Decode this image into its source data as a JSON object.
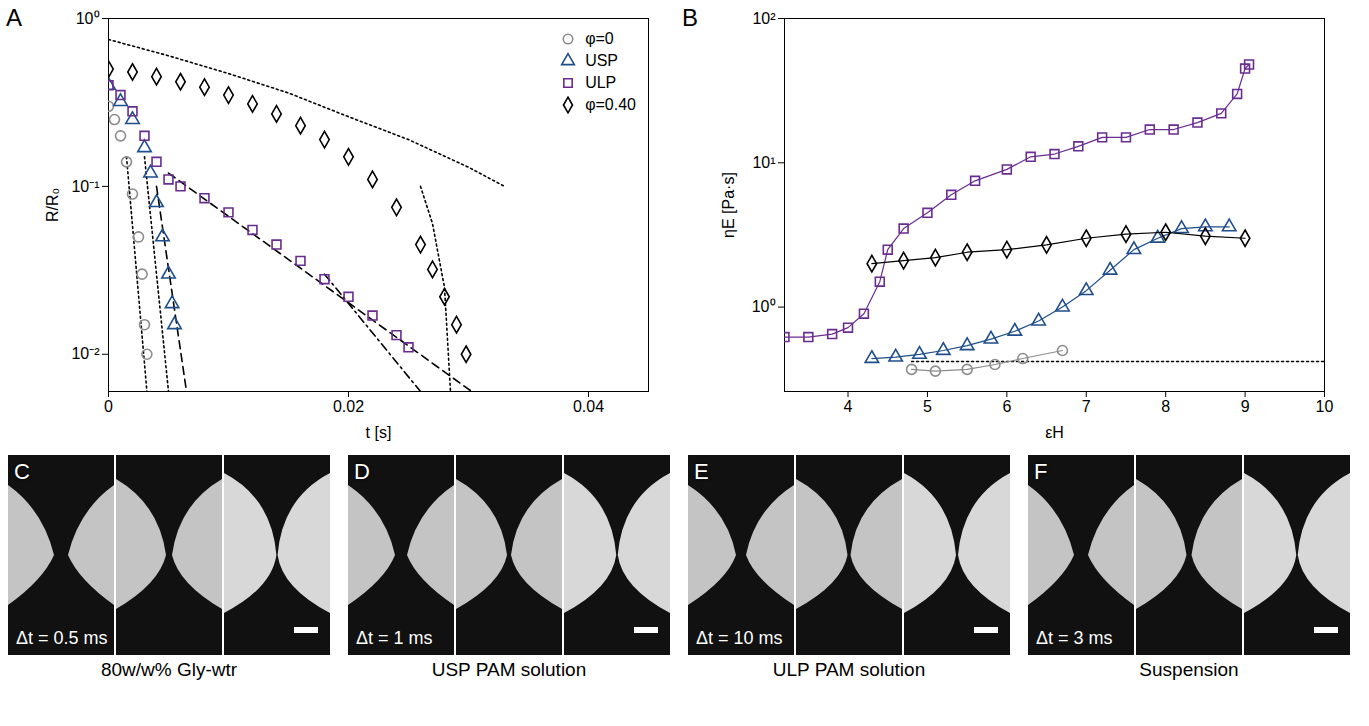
{
  "chart_data": [
    {
      "label": "A",
      "type": "scatter",
      "x_label": "t [s]",
      "y_label": "R/R₀",
      "log": "y",
      "xlim": [
        0,
        0.045
      ],
      "xticks": [
        0,
        0.02,
        0.04
      ],
      "ylim": [
        0.006,
        1
      ],
      "yticks": [
        {
          "value": 0.01,
          "label": "10⁻²"
        },
        {
          "value": 0.1,
          "label": "10⁻¹"
        },
        {
          "value": 1,
          "label": "10⁰"
        }
      ],
      "legend": "upper right",
      "series": [
        {
          "name": "φ=0",
          "color": "#8c8c8c",
          "marker": "circle",
          "x": [
            0,
            0.0005,
            0.001,
            0.0015,
            0.002,
            0.0025,
            0.0028,
            0.003,
            0.0032
          ],
          "values": [
            0.3,
            0.25,
            0.2,
            0.14,
            0.09,
            0.05,
            0.03,
            0.015,
            0.01
          ]
        },
        {
          "name": "USP",
          "color": "#1f4e8c",
          "marker": "triangle",
          "x": [
            0,
            0.001,
            0.002,
            0.003,
            0.0035,
            0.004,
            0.0045,
            0.005,
            0.0053,
            0.0055
          ],
          "values": [
            0.4,
            0.32,
            0.25,
            0.17,
            0.12,
            0.08,
            0.05,
            0.03,
            0.02,
            0.015
          ]
        },
        {
          "name": "ULP",
          "color": "#6a2c91",
          "marker": "square",
          "x": [
            0,
            0.001,
            0.002,
            0.003,
            0.004,
            0.005,
            0.006,
            0.008,
            0.01,
            0.012,
            0.014,
            0.016,
            0.018,
            0.02,
            0.022,
            0.024,
            0.025
          ],
          "values": [
            0.4,
            0.35,
            0.28,
            0.2,
            0.14,
            0.11,
            0.1,
            0.085,
            0.07,
            0.055,
            0.045,
            0.036,
            0.028,
            0.022,
            0.017,
            0.013,
            0.011
          ]
        },
        {
          "name": "φ=0.40",
          "color": "#000000",
          "marker": "diamond",
          "x": [
            0,
            0.002,
            0.004,
            0.006,
            0.008,
            0.01,
            0.012,
            0.014,
            0.016,
            0.018,
            0.02,
            0.022,
            0.024,
            0.026,
            0.027,
            0.028,
            0.029,
            0.0298
          ],
          "values": [
            0.5,
            0.48,
            0.45,
            0.42,
            0.39,
            0.35,
            0.31,
            0.27,
            0.23,
            0.19,
            0.15,
            0.11,
            0.075,
            0.045,
            0.032,
            0.022,
            0.015,
            0.01
          ]
        }
      ],
      "fits": [
        {
          "line_style": "dotted",
          "x": [
            0,
            0.005,
            0.01,
            0.015,
            0.02,
            0.025,
            0.03,
            0.033
          ],
          "values": [
            0.75,
            0.6,
            0.47,
            0.36,
            0.26,
            0.19,
            0.13,
            0.1
          ]
        },
        {
          "line_style": "dotted",
          "x": [
            0.026,
            0.027,
            0.028,
            0.0285
          ],
          "values": [
            0.1,
            0.06,
            0.025,
            0.006
          ]
        },
        {
          "line_style": "dotted",
          "x": [
            0.0015,
            0.0032
          ],
          "values": [
            0.15,
            0.006
          ]
        },
        {
          "line_style": "dotted",
          "x": [
            0.003,
            0.005
          ],
          "values": [
            0.15,
            0.006
          ]
        },
        {
          "line_style": "dashed",
          "x": [
            0.004,
            0.0065
          ],
          "values": [
            0.1,
            0.006
          ]
        },
        {
          "line_style": "dashed",
          "x": [
            0.005,
            0.031
          ],
          "values": [
            0.12,
            0.0055
          ]
        },
        {
          "line_style": "dashdot",
          "x": [
            0.018,
            0.026
          ],
          "values": [
            0.03,
            0.006
          ]
        }
      ]
    },
    {
      "label": "B",
      "type": "line",
      "x_label": "εH",
      "y_label": "ηE [Pa·s]",
      "log": "y",
      "xlim": [
        3.2,
        10
      ],
      "xticks": [
        4,
        5,
        6,
        7,
        8,
        9,
        10
      ],
      "ylim": [
        0.26,
        100
      ],
      "yticks": [
        {
          "value": 1,
          "label": "10⁰"
        },
        {
          "value": 10,
          "label": "10¹"
        },
        {
          "value": 100,
          "label": "10²"
        }
      ],
      "series": [
        {
          "name": "φ=0",
          "color": "#8c8c8c",
          "marker": "circle",
          "line_style": "solid",
          "x": [
            4.8,
            5.1,
            5.5,
            5.85,
            6.2,
            6.7
          ],
          "values": [
            0.37,
            0.36,
            0.37,
            0.4,
            0.44,
            0.5
          ]
        },
        {
          "name": "USP",
          "color": "#1f4e8c",
          "marker": "triangle",
          "line_style": "solid",
          "x": [
            4.3,
            4.6,
            4.9,
            5.2,
            5.5,
            5.8,
            6.1,
            6.4,
            6.7,
            7.0,
            7.3,
            7.6,
            7.9,
            8.2,
            8.5,
            8.8
          ],
          "values": [
            0.44,
            0.45,
            0.47,
            0.5,
            0.54,
            0.6,
            0.68,
            0.8,
            1.0,
            1.3,
            1.8,
            2.5,
            3.0,
            3.5,
            3.6,
            3.6
          ]
        },
        {
          "name": "ULP",
          "color": "#6a2c91",
          "marker": "square",
          "line_style": "solid",
          "x": [
            3.2,
            3.5,
            3.8,
            4.0,
            4.2,
            4.4,
            4.5,
            4.7,
            5.0,
            5.3,
            5.6,
            6.0,
            6.3,
            6.6,
            6.9,
            7.2,
            7.5,
            7.8,
            8.1,
            8.4,
            8.7,
            8.9,
            9.0,
            9.05
          ],
          "values": [
            0.62,
            0.62,
            0.65,
            0.72,
            0.9,
            1.5,
            2.5,
            3.5,
            4.5,
            6,
            7.5,
            9,
            11,
            11.5,
            13,
            15,
            15,
            17,
            17,
            19,
            22,
            30,
            45,
            48
          ]
        },
        {
          "name": "φ=0.40",
          "color": "#000000",
          "marker": "diamond",
          "line_style": "solid",
          "x": [
            4.3,
            4.7,
            5.1,
            5.5,
            6.0,
            6.5,
            7.0,
            7.5,
            8.0,
            8.5,
            9.0
          ],
          "values": [
            2,
            2.1,
            2.2,
            2.4,
            2.5,
            2.7,
            3.0,
            3.2,
            3.3,
            3.1,
            3.0
          ]
        }
      ],
      "fits": [
        {
          "line_style": "dotted",
          "x": [
            4.8,
            10
          ],
          "values": [
            0.42,
            0.42
          ]
        }
      ]
    }
  ],
  "panels": [
    {
      "label": "C",
      "delta_t": "Δt = 0.5 ms",
      "caption": "80w/w% Gly-wtr"
    },
    {
      "label": "D",
      "delta_t": "Δt = 1 ms",
      "caption": "USP PAM solution"
    },
    {
      "label": "E",
      "delta_t": "Δt = 10 ms",
      "caption": "ULP PAM solution"
    },
    {
      "label": "F",
      "delta_t": "Δt = 3 ms",
      "caption": "Suspension"
    }
  ]
}
